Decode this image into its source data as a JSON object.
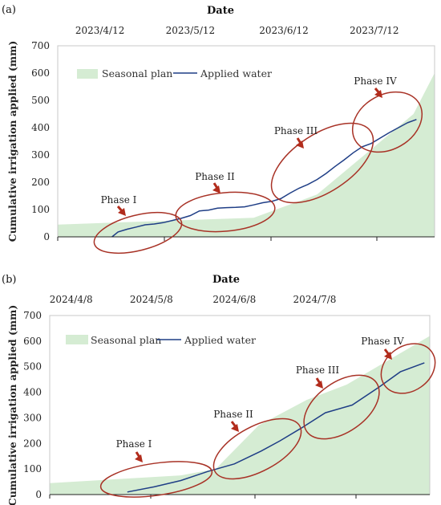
{
  "chart_data": [
    {
      "type": "area",
      "panel_label": "(a)",
      "title": "Date",
      "ylabel": "Cumulative irrigation applied (mm)",
      "ylim": [
        0,
        700
      ],
      "yticks": [
        0,
        100,
        200,
        300,
        400,
        500,
        600,
        700
      ],
      "x_range": [
        "2023-03-29",
        "2023-08-01"
      ],
      "date_ticks": [
        {
          "date": "2023-04-12",
          "label": "2023/4/12"
        },
        {
          "date": "2023-05-12",
          "label": "2023/5/12"
        },
        {
          "date": "2023-06-12",
          "label": "2023/6/12"
        },
        {
          "date": "2023-07-12",
          "label": "2023/7/12"
        }
      ],
      "grid": false,
      "legend_position": "top-left",
      "series": [
        {
          "name": "Seasonal plan",
          "kind": "area",
          "color": "#d5ecd3",
          "x": [
            "2023-03-29",
            "2023-06-02",
            "2023-06-23",
            "2023-07-25",
            "2023-08-01"
          ],
          "y": [
            45,
            70,
            155,
            450,
            600
          ]
        },
        {
          "name": "Applied water",
          "kind": "line",
          "color": "#1f3e86",
          "x": [
            "2023-04-16",
            "2023-04-18",
            "2023-04-21",
            "2023-04-24",
            "2023-04-27",
            "2023-04-30",
            "2023-05-03",
            "2023-05-06",
            "2023-05-09",
            "2023-05-12",
            "2023-05-15",
            "2023-05-18",
            "2023-05-21",
            "2023-05-24",
            "2023-05-27",
            "2023-05-30",
            "2023-06-02",
            "2023-06-05",
            "2023-06-08",
            "2023-06-11",
            "2023-06-14",
            "2023-06-17",
            "2023-06-20",
            "2023-06-23",
            "2023-06-26",
            "2023-06-29",
            "2023-07-02",
            "2023-07-05",
            "2023-07-08",
            "2023-07-11",
            "2023-07-14",
            "2023-07-17",
            "2023-07-20",
            "2023-07-23",
            "2023-07-26"
          ],
          "y": [
            0,
            18,
            28,
            36,
            44,
            47,
            52,
            60,
            68,
            78,
            95,
            98,
            105,
            107,
            108,
            110,
            117,
            125,
            130,
            140,
            160,
            178,
            192,
            210,
            232,
            258,
            282,
            308,
            330,
            342,
            362,
            382,
            400,
            418,
            430
          ]
        }
      ],
      "annotations": [
        "Phase I",
        "Phase II",
        "Phase III",
        "Phase IV"
      ]
    },
    {
      "type": "area",
      "panel_label": "(b)",
      "title": "Date",
      "ylabel": "Cumulative irrigation applied (mm)",
      "ylim": [
        0,
        700
      ],
      "yticks": [
        0,
        100,
        200,
        300,
        400,
        500,
        600,
        700
      ],
      "x_range": [
        "2024-03-31",
        "2024-08-20"
      ],
      "date_ticks": [
        {
          "date": "2024-04-08",
          "label": "2024/4/8"
        },
        {
          "date": "2024-05-08",
          "label": "2024/5/8"
        },
        {
          "date": "2024-06-08",
          "label": "2024/6/8"
        },
        {
          "date": "2024-07-08",
          "label": "2024/7/8"
        }
      ],
      "grid": false,
      "legend_position": "top-left",
      "series": [
        {
          "name": "Seasonal plan",
          "kind": "area",
          "color": "#d5ecd3",
          "x": [
            "2024-03-31",
            "2024-05-19",
            "2024-06-01",
            "2024-06-17",
            "2024-07-05",
            "2024-07-20",
            "2024-08-20"
          ],
          "y": [
            45,
            75,
            100,
            270,
            370,
            430,
            620
          ]
        },
        {
          "name": "Applied water",
          "kind": "line",
          "color": "#1f3e86",
          "x": [
            "2024-04-29",
            "2024-05-09",
            "2024-05-19",
            "2024-05-29",
            "2024-06-08",
            "2024-06-18",
            "2024-06-25",
            "2024-07-03",
            "2024-07-12",
            "2024-07-22",
            "2024-08-01",
            "2024-08-09",
            "2024-08-18"
          ],
          "y": [
            10,
            30,
            55,
            90,
            120,
            170,
            210,
            260,
            320,
            350,
            420,
            480,
            515
          ]
        }
      ],
      "annotations": [
        "Phase I",
        "Phase II",
        "Phase III",
        "Phase IV"
      ]
    }
  ]
}
